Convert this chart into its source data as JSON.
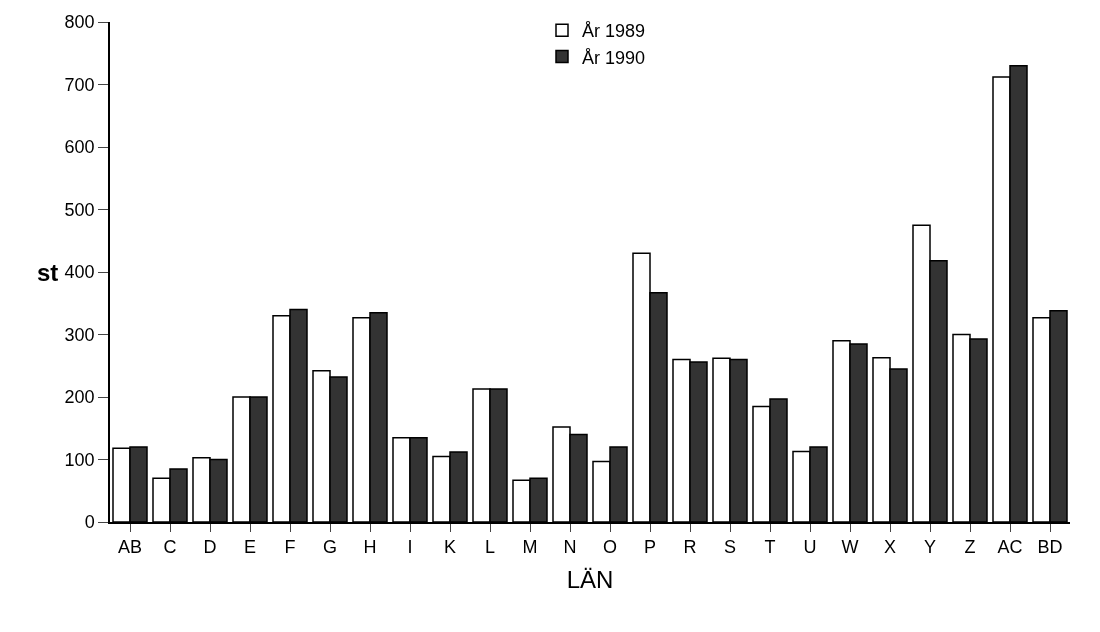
{
  "chart_data": {
    "type": "bar",
    "xlabel": "LÄN",
    "ylabel": "st",
    "categories": [
      "AB",
      "C",
      "D",
      "E",
      "F",
      "G",
      "H",
      "I",
      "K",
      "L",
      "M",
      "N",
      "O",
      "P",
      "R",
      "S",
      "T",
      "U",
      "W",
      "X",
      "Y",
      "Z",
      "AC",
      "BD"
    ],
    "series": [
      {
        "name": "År 1989",
        "color": "#ffffff",
        "values": [
          118,
          70,
          103,
          200,
          330,
          242,
          327,
          135,
          105,
          213,
          67,
          152,
          97,
          430,
          260,
          262,
          185,
          113,
          290,
          263,
          475,
          300,
          712,
          327
        ]
      },
      {
        "name": "År 1990",
        "color": "#333333",
        "values": [
          120,
          85,
          100,
          200,
          340,
          232,
          335,
          135,
          112,
          213,
          70,
          140,
          120,
          367,
          256,
          260,
          197,
          120,
          285,
          245,
          418,
          293,
          730,
          338
        ]
      }
    ],
    "ylim": [
      0,
      800
    ],
    "yticks": [
      0,
      100,
      200,
      300,
      400,
      500,
      600,
      700,
      800
    ],
    "legend": "top"
  }
}
